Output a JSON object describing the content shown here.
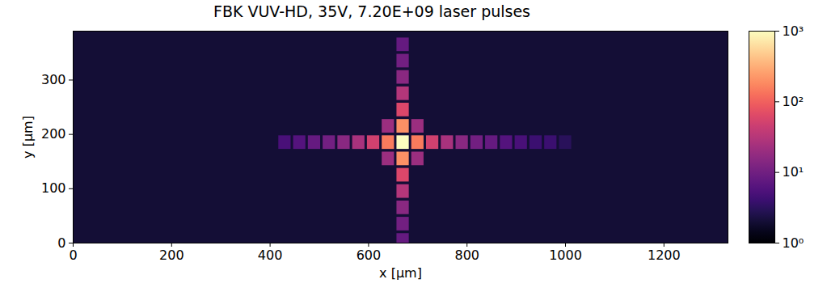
{
  "chart_data": {
    "type": "heatmap",
    "title": "FBK VUV-HD, 35V, 7.20E+09 laser pulses",
    "x_label": "x [μm]",
    "y_label": "y [μm]",
    "xlim": [
      0,
      1330
    ],
    "ylim": [
      0,
      390
    ],
    "xticks": [
      0,
      200,
      400,
      600,
      800,
      1000,
      1200
    ],
    "yticks": [
      0,
      100,
      200,
      300
    ],
    "log": "color",
    "cell_size": 25,
    "background": 2,
    "cells": [
      {
        "x": 670,
        "y": 185,
        "value": 1000
      },
      {
        "x": 640,
        "y": 185,
        "value": 150
      },
      {
        "x": 700,
        "y": 185,
        "value": 150
      },
      {
        "x": 610,
        "y": 185,
        "value": 50
      },
      {
        "x": 730,
        "y": 185,
        "value": 50
      },
      {
        "x": 580,
        "y": 185,
        "value": 25
      },
      {
        "x": 760,
        "y": 185,
        "value": 25
      },
      {
        "x": 550,
        "y": 185,
        "value": 15
      },
      {
        "x": 790,
        "y": 185,
        "value": 15
      },
      {
        "x": 520,
        "y": 185,
        "value": 10
      },
      {
        "x": 820,
        "y": 185,
        "value": 10
      },
      {
        "x": 490,
        "y": 185,
        "value": 8
      },
      {
        "x": 850,
        "y": 185,
        "value": 8
      },
      {
        "x": 460,
        "y": 185,
        "value": 6
      },
      {
        "x": 880,
        "y": 185,
        "value": 6
      },
      {
        "x": 430,
        "y": 185,
        "value": 5
      },
      {
        "x": 910,
        "y": 185,
        "value": 5
      },
      {
        "x": 940,
        "y": 185,
        "value": 4
      },
      {
        "x": 970,
        "y": 185,
        "value": 4
      },
      {
        "x": 1000,
        "y": 185,
        "value": 3
      },
      {
        "x": 670,
        "y": 215,
        "value": 200
      },
      {
        "x": 670,
        "y": 155,
        "value": 200
      },
      {
        "x": 670,
        "y": 245,
        "value": 60
      },
      {
        "x": 670,
        "y": 125,
        "value": 60
      },
      {
        "x": 670,
        "y": 275,
        "value": 30
      },
      {
        "x": 670,
        "y": 95,
        "value": 30
      },
      {
        "x": 670,
        "y": 305,
        "value": 15
      },
      {
        "x": 670,
        "y": 65,
        "value": 15
      },
      {
        "x": 670,
        "y": 335,
        "value": 10
      },
      {
        "x": 670,
        "y": 35,
        "value": 10
      },
      {
        "x": 670,
        "y": 365,
        "value": 8
      },
      {
        "x": 670,
        "y": 5,
        "value": 8
      },
      {
        "x": 640,
        "y": 215,
        "value": 20
      },
      {
        "x": 700,
        "y": 215,
        "value": 20
      },
      {
        "x": 640,
        "y": 155,
        "value": 20
      },
      {
        "x": 700,
        "y": 155,
        "value": 20
      }
    ],
    "colorbar": {
      "range": [
        1,
        1000
      ],
      "ticks": [
        {
          "value": 1,
          "label": "10⁰"
        },
        {
          "value": 10,
          "label": "10¹"
        },
        {
          "value": 100,
          "label": "10²"
        },
        {
          "value": 1000,
          "label": "10³"
        }
      ]
    }
  }
}
